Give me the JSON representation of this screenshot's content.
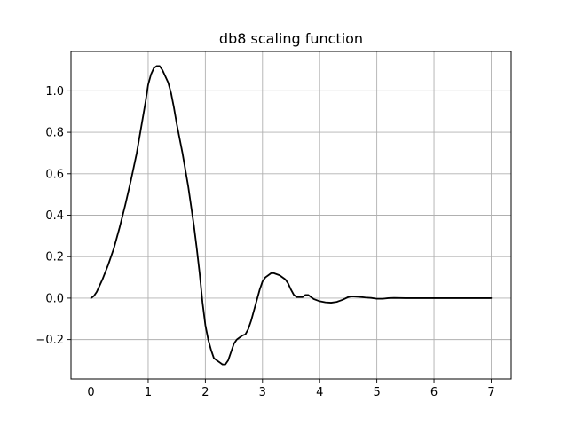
{
  "chart_data": {
    "type": "line",
    "title": "db8 scaling function",
    "xlabel": "",
    "ylabel": "",
    "xlim": [
      -0.35,
      7.35
    ],
    "ylim": [
      -0.39,
      1.19
    ],
    "grid": true,
    "xticks": [
      0,
      1,
      2,
      3,
      4,
      5,
      6,
      7
    ],
    "xtick_labels": [
      "0",
      "1",
      "2",
      "3",
      "4",
      "5",
      "6",
      "7"
    ],
    "yticks": [
      -0.2,
      0.0,
      0.2,
      0.4,
      0.6,
      0.8,
      1.0
    ],
    "ytick_labels": [
      "−0.2",
      "0.0",
      "0.2",
      "0.4",
      "0.6",
      "0.8",
      "1.0"
    ],
    "series": [
      {
        "color": "#000000",
        "x": [
          0.0,
          0.05,
          0.1,
          0.15,
          0.2,
          0.3,
          0.4,
          0.5,
          0.6,
          0.7,
          0.8,
          0.9,
          0.95,
          1.0,
          1.05,
          1.1,
          1.15,
          1.2,
          1.25,
          1.3,
          1.35,
          1.4,
          1.45,
          1.5,
          1.6,
          1.7,
          1.8,
          1.85,
          1.9,
          1.95,
          2.0,
          2.05,
          2.1,
          2.15,
          2.2,
          2.25,
          2.3,
          2.35,
          2.4,
          2.45,
          2.5,
          2.55,
          2.6,
          2.65,
          2.7,
          2.75,
          2.8,
          2.85,
          2.9,
          2.95,
          3.0,
          3.05,
          3.1,
          3.15,
          3.2,
          3.3,
          3.4,
          3.45,
          3.5,
          3.55,
          3.6,
          3.7,
          3.75,
          3.8,
          3.85,
          3.9,
          4.0,
          4.1,
          4.2,
          4.3,
          4.4,
          4.5,
          4.55,
          4.6,
          4.7,
          4.8,
          4.9,
          5.0,
          5.1,
          5.2,
          5.3,
          5.5,
          6.0,
          6.5,
          7.0
        ],
        "y": [
          0.0,
          0.01,
          0.03,
          0.06,
          0.09,
          0.16,
          0.24,
          0.34,
          0.45,
          0.57,
          0.7,
          0.86,
          0.94,
          1.03,
          1.08,
          1.11,
          1.12,
          1.12,
          1.1,
          1.07,
          1.04,
          0.99,
          0.92,
          0.84,
          0.7,
          0.54,
          0.35,
          0.24,
          0.12,
          -0.02,
          -0.13,
          -0.2,
          -0.25,
          -0.29,
          -0.3,
          -0.31,
          -0.32,
          -0.32,
          -0.3,
          -0.26,
          -0.22,
          -0.2,
          -0.19,
          -0.18,
          -0.175,
          -0.15,
          -0.11,
          -0.06,
          -0.01,
          0.04,
          0.08,
          0.1,
          0.11,
          0.12,
          0.12,
          0.11,
          0.09,
          0.07,
          0.04,
          0.015,
          0.005,
          0.005,
          0.015,
          0.015,
          0.005,
          -0.005,
          -0.015,
          -0.02,
          -0.022,
          -0.018,
          -0.008,
          0.005,
          0.008,
          0.008,
          0.006,
          0.003,
          0.001,
          -0.003,
          -0.003,
          0.0,
          0.001,
          0.0,
          0.0,
          0.0,
          0.0
        ]
      }
    ]
  }
}
